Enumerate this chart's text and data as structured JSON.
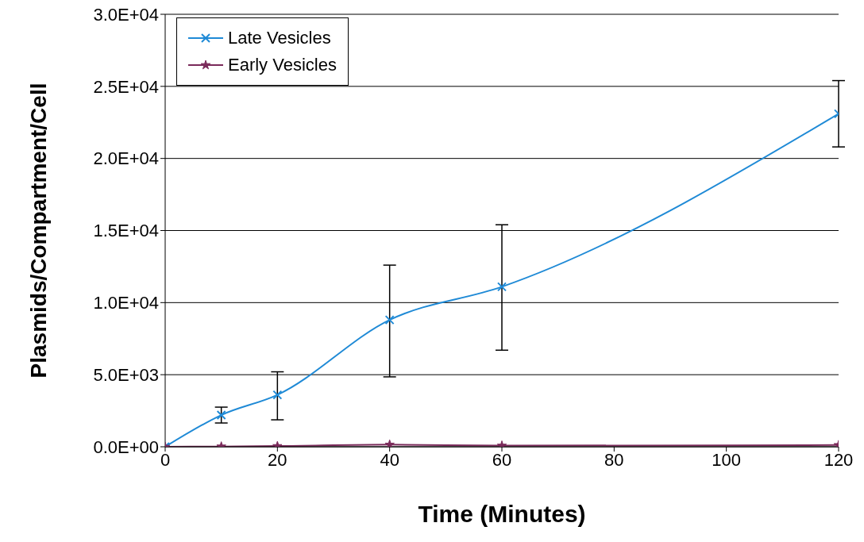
{
  "chart_data": {
    "type": "line",
    "xlabel": "Time (Minutes)",
    "ylabel": "Plasmids/Compartment/Cell",
    "x": [
      0,
      10,
      20,
      40,
      60,
      120
    ],
    "series": [
      {
        "name": "Late Vesicles",
        "color": "#1f8ad6",
        "marker": "cross",
        "values": [
          0,
          2200,
          3600,
          8800,
          11100,
          23100
        ],
        "errors": [
          null,
          [
            1650,
            2750
          ],
          [
            1870,
            5200
          ],
          [
            4850,
            12600
          ],
          [
            6700,
            15400
          ],
          [
            20800,
            25400
          ]
        ]
      },
      {
        "name": "Early Vesicles",
        "color": "#7a2a5a",
        "marker": "star",
        "values": [
          0,
          20,
          50,
          150,
          80,
          120
        ]
      }
    ],
    "xlim": [
      0,
      120
    ],
    "xticks": [
      0,
      20,
      40,
      60,
      80,
      100,
      120
    ],
    "ylim": [
      0,
      30000
    ],
    "yticks": [
      {
        "value": 0,
        "label": "0.0E+00"
      },
      {
        "value": 5000,
        "label": "5.0E+03"
      },
      {
        "value": 10000,
        "label": "1.0E+04"
      },
      {
        "value": 15000,
        "label": "1.5E+04"
      },
      {
        "value": 20000,
        "label": "2.0E+04"
      },
      {
        "value": 25000,
        "label": "2.5E+04"
      },
      {
        "value": 30000,
        "label": "3.0E+04"
      }
    ],
    "grid": "y",
    "legend": "top left"
  }
}
